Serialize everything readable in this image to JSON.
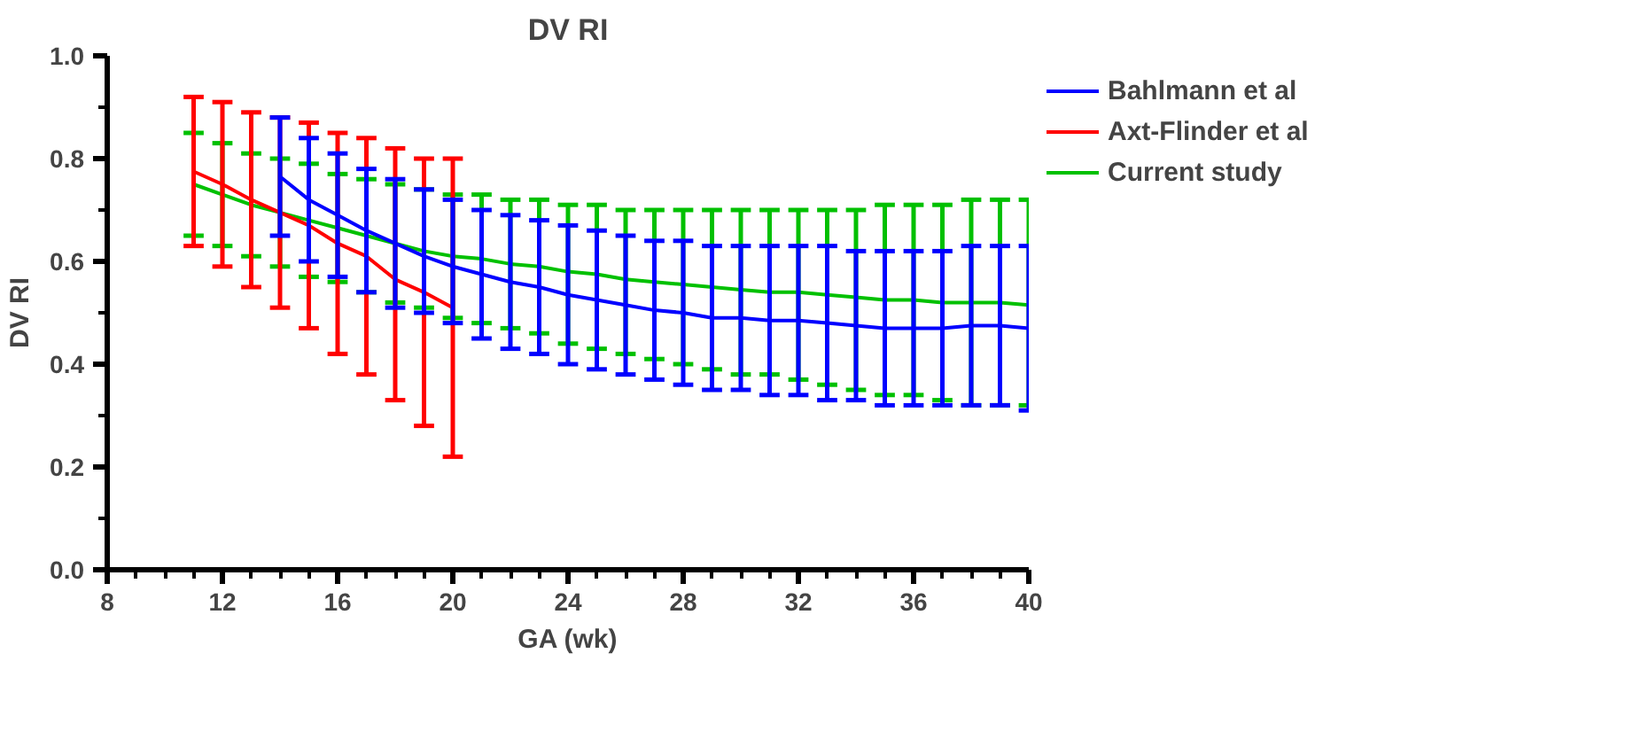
{
  "chart_data": {
    "type": "line",
    "title": "DV RI",
    "xlabel": "GA (wk)",
    "ylabel": "DV RI",
    "xlim": [
      8,
      40
    ],
    "xticks": [
      8,
      12,
      16,
      20,
      24,
      28,
      32,
      36,
      40
    ],
    "ylim": [
      0,
      1.0
    ],
    "yticks": [
      {
        "value": 0,
        "label": "0.0"
      },
      {
        "value": 0.2,
        "label": "0.2"
      },
      {
        "value": 0.4,
        "label": "0.4"
      },
      {
        "value": 0.6,
        "label": "0.6"
      },
      {
        "value": 0.8,
        "label": "0.8"
      },
      {
        "value": 1.0,
        "label": "1.0"
      }
    ],
    "grid": false,
    "legend": "right",
    "marker": "none",
    "line_style": "solid",
    "series": [
      {
        "name": "Bahlmann et al",
        "color": "#0000ff",
        "x": [
          14,
          15,
          16,
          17,
          18,
          19,
          20,
          21,
          22,
          23,
          24,
          25,
          26,
          27,
          28,
          29,
          30,
          31,
          32,
          33,
          34,
          35,
          36,
          37,
          38,
          39,
          40
        ],
        "values": [
          0.765,
          0.72,
          0.69,
          0.66,
          0.635,
          0.61,
          0.59,
          0.575,
          0.56,
          0.55,
          0.535,
          0.525,
          0.515,
          0.505,
          0.5,
          0.49,
          0.49,
          0.485,
          0.485,
          0.48,
          0.475,
          0.47,
          0.47,
          0.47,
          0.475,
          0.475,
          0.47
        ],
        "errors": [
          [
            0.65,
            0.88
          ],
          [
            0.6,
            0.84
          ],
          [
            0.57,
            0.81
          ],
          [
            0.54,
            0.78
          ],
          [
            0.51,
            0.76
          ],
          [
            0.5,
            0.74
          ],
          [
            0.48,
            0.72
          ],
          [
            0.45,
            0.7
          ],
          [
            0.43,
            0.69
          ],
          [
            0.42,
            0.68
          ],
          [
            0.4,
            0.67
          ],
          [
            0.39,
            0.66
          ],
          [
            0.38,
            0.65
          ],
          [
            0.37,
            0.64
          ],
          [
            0.36,
            0.64
          ],
          [
            0.35,
            0.63
          ],
          [
            0.35,
            0.63
          ],
          [
            0.34,
            0.63
          ],
          [
            0.34,
            0.63
          ],
          [
            0.33,
            0.63
          ],
          [
            0.33,
            0.62
          ],
          [
            0.32,
            0.62
          ],
          [
            0.32,
            0.62
          ],
          [
            0.32,
            0.62
          ],
          [
            0.32,
            0.63
          ],
          [
            0.32,
            0.63
          ],
          [
            0.31,
            0.63
          ]
        ]
      },
      {
        "name": "Axt-Flinder et al",
        "color": "#ff0000",
        "x": [
          11,
          12,
          13,
          14,
          15,
          16,
          17,
          18,
          19,
          20
        ],
        "values": [
          0.775,
          0.75,
          0.72,
          0.695,
          0.67,
          0.635,
          0.61,
          0.565,
          0.54,
          0.51
        ],
        "errors": [
          [
            0.63,
            0.92
          ],
          [
            0.59,
            0.91
          ],
          [
            0.55,
            0.89
          ],
          [
            0.51,
            0.88
          ],
          [
            0.47,
            0.87
          ],
          [
            0.42,
            0.85
          ],
          [
            0.38,
            0.84
          ],
          [
            0.33,
            0.82
          ],
          [
            0.28,
            0.8
          ],
          [
            0.22,
            0.8
          ]
        ]
      },
      {
        "name": "Current study",
        "color": "#00c000",
        "x": [
          11,
          12,
          13,
          14,
          15,
          16,
          17,
          18,
          19,
          20,
          21,
          22,
          23,
          24,
          25,
          26,
          27,
          28,
          29,
          30,
          31,
          32,
          33,
          34,
          35,
          36,
          37,
          38,
          39,
          40
        ],
        "values": [
          0.75,
          0.73,
          0.71,
          0.695,
          0.68,
          0.665,
          0.65,
          0.635,
          0.62,
          0.61,
          0.605,
          0.595,
          0.59,
          0.58,
          0.575,
          0.565,
          0.56,
          0.555,
          0.55,
          0.545,
          0.54,
          0.54,
          0.535,
          0.53,
          0.525,
          0.525,
          0.52,
          0.52,
          0.52,
          0.515
        ],
        "errors": [
          [
            0.65,
            0.85
          ],
          [
            0.63,
            0.83
          ],
          [
            0.61,
            0.81
          ],
          [
            0.59,
            0.8
          ],
          [
            0.57,
            0.79
          ],
          [
            0.56,
            0.77
          ],
          [
            0.54,
            0.76
          ],
          [
            0.52,
            0.75
          ],
          [
            0.51,
            0.74
          ],
          [
            0.49,
            0.73
          ],
          [
            0.48,
            0.73
          ],
          [
            0.47,
            0.72
          ],
          [
            0.46,
            0.72
          ],
          [
            0.44,
            0.71
          ],
          [
            0.43,
            0.71
          ],
          [
            0.42,
            0.7
          ],
          [
            0.41,
            0.7
          ],
          [
            0.4,
            0.7
          ],
          [
            0.39,
            0.7
          ],
          [
            0.38,
            0.7
          ],
          [
            0.38,
            0.7
          ],
          [
            0.37,
            0.7
          ],
          [
            0.36,
            0.7
          ],
          [
            0.35,
            0.7
          ],
          [
            0.34,
            0.71
          ],
          [
            0.34,
            0.71
          ],
          [
            0.33,
            0.71
          ],
          [
            0.32,
            0.72
          ],
          [
            0.32,
            0.72
          ],
          [
            0.32,
            0.72
          ]
        ]
      }
    ]
  }
}
